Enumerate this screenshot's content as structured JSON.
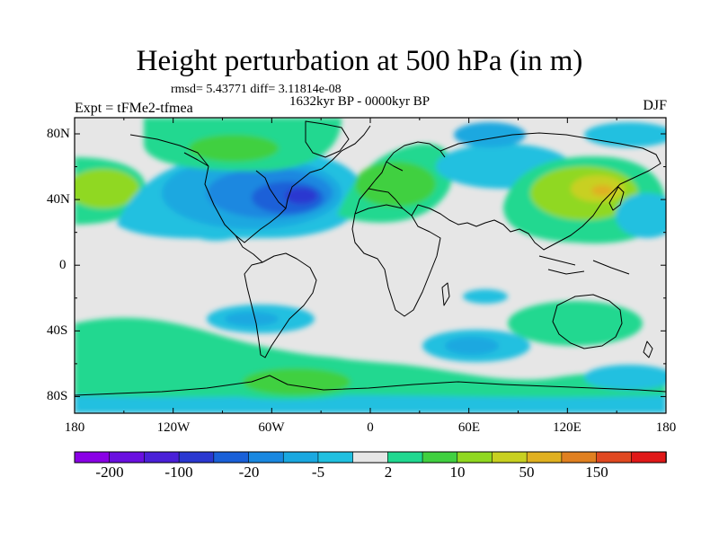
{
  "title": "Height perturbation at 500 hPa (in m)",
  "stats": "rmsd= 5.43771 diff= 3.11814e-08",
  "period": "1632kyr BP - 0000kyr BP",
  "experiment": "Expt = tFMe2-tfmea",
  "season": "DJF",
  "lat_labels": [
    "80N",
    "40N",
    "0",
    "40S",
    "80S"
  ],
  "lon_labels": [
    "180",
    "120W",
    "60W",
    "0",
    "60E",
    "120E",
    "180"
  ],
  "colorbar": {
    "colors": [
      "#8a00e6",
      "#6a10e0",
      "#4a20d8",
      "#2a38d0",
      "#1a60d8",
      "#1a88e0",
      "#1aa8e0",
      "#20c0e0",
      "#e6e6e6",
      "#20d890",
      "#40d040",
      "#90d820",
      "#c8d020",
      "#e0b020",
      "#e08020",
      "#e04820",
      "#e01818"
    ],
    "labels": [
      "-200",
      "-100",
      "-20",
      "-5",
      "2",
      "10",
      "50",
      "150"
    ]
  },
  "colors": {
    "neutral": "#e6e6e6",
    "light_blue": "#20c0e0",
    "mid_blue": "#1aa8e0",
    "blue": "#1a88e0",
    "dark_blue": "#1a60d8",
    "deep_blue": "#2a38d0",
    "mint": "#20d890",
    "green": "#40d040",
    "yellow_green": "#90d820",
    "olive": "#c8d020",
    "orange": "#e0b020"
  }
}
